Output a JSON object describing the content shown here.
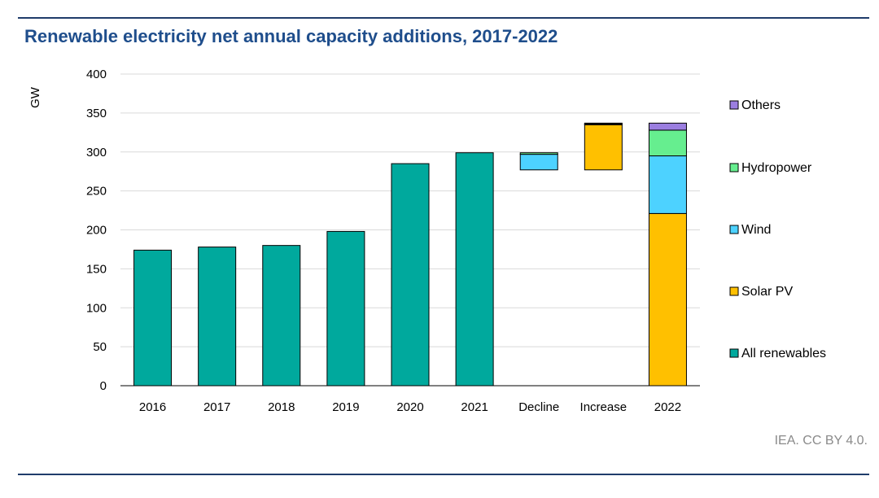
{
  "title": "Renewable electricity net annual capacity additions, 2017-2022",
  "source": "IEA. CC BY 4.0.",
  "colors": {
    "all_renewables": "#00a99d",
    "solar_pv": "#ffc000",
    "wind": "#4dd2ff",
    "hydropower": "#66ee8f",
    "others": "#9b7ee0",
    "grid": "#d9d9d9",
    "title": "#1f4e8c"
  },
  "chart_data": {
    "type": "bar",
    "subtype": "stacked waterfall",
    "title": "Renewable electricity net annual capacity additions, 2017-2022",
    "ylabel": "GW",
    "xlabel": "",
    "ylim": [
      0,
      400
    ],
    "yticks": [
      0,
      50,
      100,
      150,
      200,
      250,
      300,
      350,
      400
    ],
    "grid": true,
    "legend_position": "right",
    "categories": [
      "2016",
      "2017",
      "2018",
      "2019",
      "2020",
      "2021",
      "Decline",
      "Increase",
      "2022"
    ],
    "legend": [
      {
        "key": "others",
        "label": "Others"
      },
      {
        "key": "hydropower",
        "label": "Hydropower"
      },
      {
        "key": "wind",
        "label": "Wind"
      },
      {
        "key": "solar_pv",
        "label": "Solar PV"
      },
      {
        "key": "all_renewables",
        "label": "All renewables"
      }
    ],
    "bars": [
      {
        "category": "2016",
        "segments": [
          {
            "series": "all_renewables",
            "from": 0,
            "to": 174
          }
        ]
      },
      {
        "category": "2017",
        "segments": [
          {
            "series": "all_renewables",
            "from": 0,
            "to": 178
          }
        ]
      },
      {
        "category": "2018",
        "segments": [
          {
            "series": "all_renewables",
            "from": 0,
            "to": 180
          }
        ]
      },
      {
        "category": "2019",
        "segments": [
          {
            "series": "all_renewables",
            "from": 0,
            "to": 198
          }
        ]
      },
      {
        "category": "2020",
        "segments": [
          {
            "series": "all_renewables",
            "from": 0,
            "to": 285
          }
        ]
      },
      {
        "category": "2021",
        "segments": [
          {
            "series": "all_renewables",
            "from": 0,
            "to": 299
          }
        ]
      },
      {
        "category": "Decline",
        "segments": [
          {
            "series": "wind",
            "from": 277,
            "to": 297
          },
          {
            "series": "hydropower",
            "from": 297,
            "to": 299
          }
        ]
      },
      {
        "category": "Increase",
        "segments": [
          {
            "series": "solar_pv",
            "from": 277,
            "to": 335
          },
          {
            "series": "hydropower",
            "from": 335,
            "to": 336
          },
          {
            "series": "others",
            "from": 336,
            "to": 337
          }
        ]
      },
      {
        "category": "2022",
        "segments": [
          {
            "series": "solar_pv",
            "from": 0,
            "to": 221
          },
          {
            "series": "wind",
            "from": 221,
            "to": 295
          },
          {
            "series": "hydropower",
            "from": 295,
            "to": 328
          },
          {
            "series": "others",
            "from": 328,
            "to": 337
          }
        ]
      }
    ]
  }
}
